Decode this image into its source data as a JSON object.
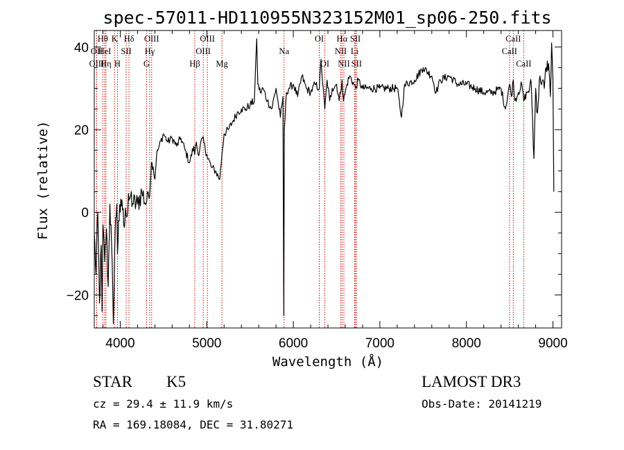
{
  "chart_data": {
    "type": "line",
    "title": "spec-57011-HD110955N323152M01_sp06-250.fits",
    "xlabel": "Wavelength (Å)",
    "ylabel": "Flux (relative)",
    "xlim": [
      3700,
      9100
    ],
    "ylim": [
      -28,
      44
    ],
    "xticks": [
      4000,
      5000,
      6000,
      7000,
      8000,
      9000
    ],
    "yticks": [
      -20,
      0,
      20,
      40
    ],
    "series": [
      {
        "name": "flux",
        "x": [
          3700,
          3720,
          3740,
          3760,
          3780,
          3790,
          3800,
          3820,
          3840,
          3860,
          3880,
          3900,
          3920,
          3940,
          3960,
          3968,
          3980,
          4000,
          4020,
          4040,
          4060,
          4080,
          4101,
          4120,
          4150,
          4200,
          4250,
          4300,
          4320,
          4340,
          4360,
          4380,
          4400,
          4420,
          4450,
          4500,
          4550,
          4600,
          4650,
          4700,
          4750,
          4800,
          4850,
          4861,
          4880,
          4900,
          4950,
          5000,
          5050,
          5100,
          5150,
          5175,
          5200,
          5250,
          5300,
          5350,
          5400,
          5450,
          5500,
          5550,
          5577,
          5590,
          5620,
          5650,
          5700,
          5750,
          5800,
          5850,
          5880,
          5890,
          5896,
          5905,
          5920,
          5950,
          6000,
          6050,
          6100,
          6150,
          6200,
          6250,
          6300,
          6320,
          6340,
          6364,
          6390,
          6420,
          6450,
          6500,
          6530,
          6563,
          6580,
          6620,
          6650,
          6700,
          6720,
          6750,
          6800,
          6900,
          7000,
          7100,
          7200,
          7250,
          7280,
          7300,
          7400,
          7500,
          7600,
          7650,
          7700,
          7800,
          7900,
          8000,
          8100,
          8200,
          8300,
          8400,
          8450,
          8498,
          8520,
          8542,
          8560,
          8600,
          8640,
          8662,
          8700,
          8730,
          8750,
          8780,
          8800,
          8820,
          8850,
          8900,
          8920,
          8950,
          8970,
          8985,
          9000,
          9010
        ],
        "values": [
          -5,
          -15,
          0,
          -22,
          -8,
          -24,
          -3,
          -12,
          -4,
          -18,
          2,
          -8,
          -27,
          -5,
          2,
          -10,
          -2,
          0,
          3,
          -3,
          1,
          -1,
          3,
          4,
          2,
          2,
          5,
          2,
          5,
          4,
          12,
          11,
          8,
          14,
          16,
          19,
          17,
          18,
          16,
          18,
          15,
          12,
          16,
          14,
          17,
          14,
          18,
          14,
          11,
          10,
          8,
          14,
          19,
          20,
          22,
          24,
          25,
          25,
          26,
          27,
          42,
          31,
          29,
          30,
          27,
          25,
          30,
          23,
          28,
          -25,
          20,
          23,
          29,
          30,
          31,
          28,
          33,
          30,
          29,
          31,
          30,
          37,
          31,
          25,
          32,
          27,
          30,
          31,
          27,
          32,
          27,
          31,
          33,
          31,
          30,
          32,
          30,
          30,
          30,
          30,
          30,
          23,
          30,
          31,
          32,
          35,
          33,
          29,
          32,
          33,
          31,
          31,
          30,
          29,
          29,
          30,
          25,
          31,
          28,
          32,
          27,
          29,
          31,
          27,
          29,
          30,
          31,
          13,
          30,
          24,
          33,
          30,
          35,
          36,
          28,
          41,
          32,
          5
        ]
      }
    ],
    "lines": [
      {
        "label": "Hθ",
        "wl": 3798,
        "row": 0
      },
      {
        "label": "OII",
        "wl": 3727,
        "row": 1
      },
      {
        "label": "OIII",
        "wl": 3727,
        "row": 2
      },
      {
        "label": "HeI",
        "wl": 3820,
        "row": 1
      },
      {
        "label": "Hη",
        "wl": 3835,
        "row": 2
      },
      {
        "label": "K",
        "wl": 3934,
        "row": 0
      },
      {
        "label": "SII",
        "wl": 4069,
        "row": 1
      },
      {
        "label": "H",
        "wl": 3968,
        "row": 2
      },
      {
        "label": "Hδ",
        "wl": 4101,
        "row": 0
      },
      {
        "label": "OIII",
        "wl": 4363,
        "row": 0
      },
      {
        "label": "Hγ",
        "wl": 4340,
        "row": 1
      },
      {
        "label": "G",
        "wl": 4304,
        "row": 2
      },
      {
        "label": "Hβ",
        "wl": 4861,
        "row": 2
      },
      {
        "label": "OIII",
        "wl": 5007,
        "row": 0
      },
      {
        "label": "OIII",
        "wl": 4959,
        "row": 1
      },
      {
        "label": "Mg",
        "wl": 5175,
        "row": 2
      },
      {
        "label": "Na",
        "wl": 5893,
        "row": 1
      },
      {
        "label": "OI",
        "wl": 6300,
        "row": 0
      },
      {
        "label": "OI",
        "wl": 6364,
        "row": 2
      },
      {
        "label": "Hα",
        "wl": 6563,
        "row": 0
      },
      {
        "label": "NII",
        "wl": 6548,
        "row": 1
      },
      {
        "label": "NII",
        "wl": 6584,
        "row": 2
      },
      {
        "label": "SII",
        "wl": 6717,
        "row": 0
      },
      {
        "label": "Li",
        "wl": 6708,
        "row": 1
      },
      {
        "label": "SII",
        "wl": 6731,
        "row": 2
      },
      {
        "label": "CaII",
        "wl": 8542,
        "row": 0
      },
      {
        "label": "CaII",
        "wl": 8498,
        "row": 1
      },
      {
        "label": "CaII",
        "wl": 8662,
        "row": 2
      }
    ]
  },
  "info": {
    "class_type": "STAR",
    "class_sub": "K5",
    "survey": "LAMOST DR3",
    "cz": "cz = 29.4 ± 11.9 km/s",
    "obs_date": "Obs-Date: 20141219",
    "radec": "RA = 169.18084, DEC =  31.80271"
  },
  "colors": {
    "spectrum": "#000000",
    "line_marker": "#cc0000",
    "axis": "#000000"
  }
}
